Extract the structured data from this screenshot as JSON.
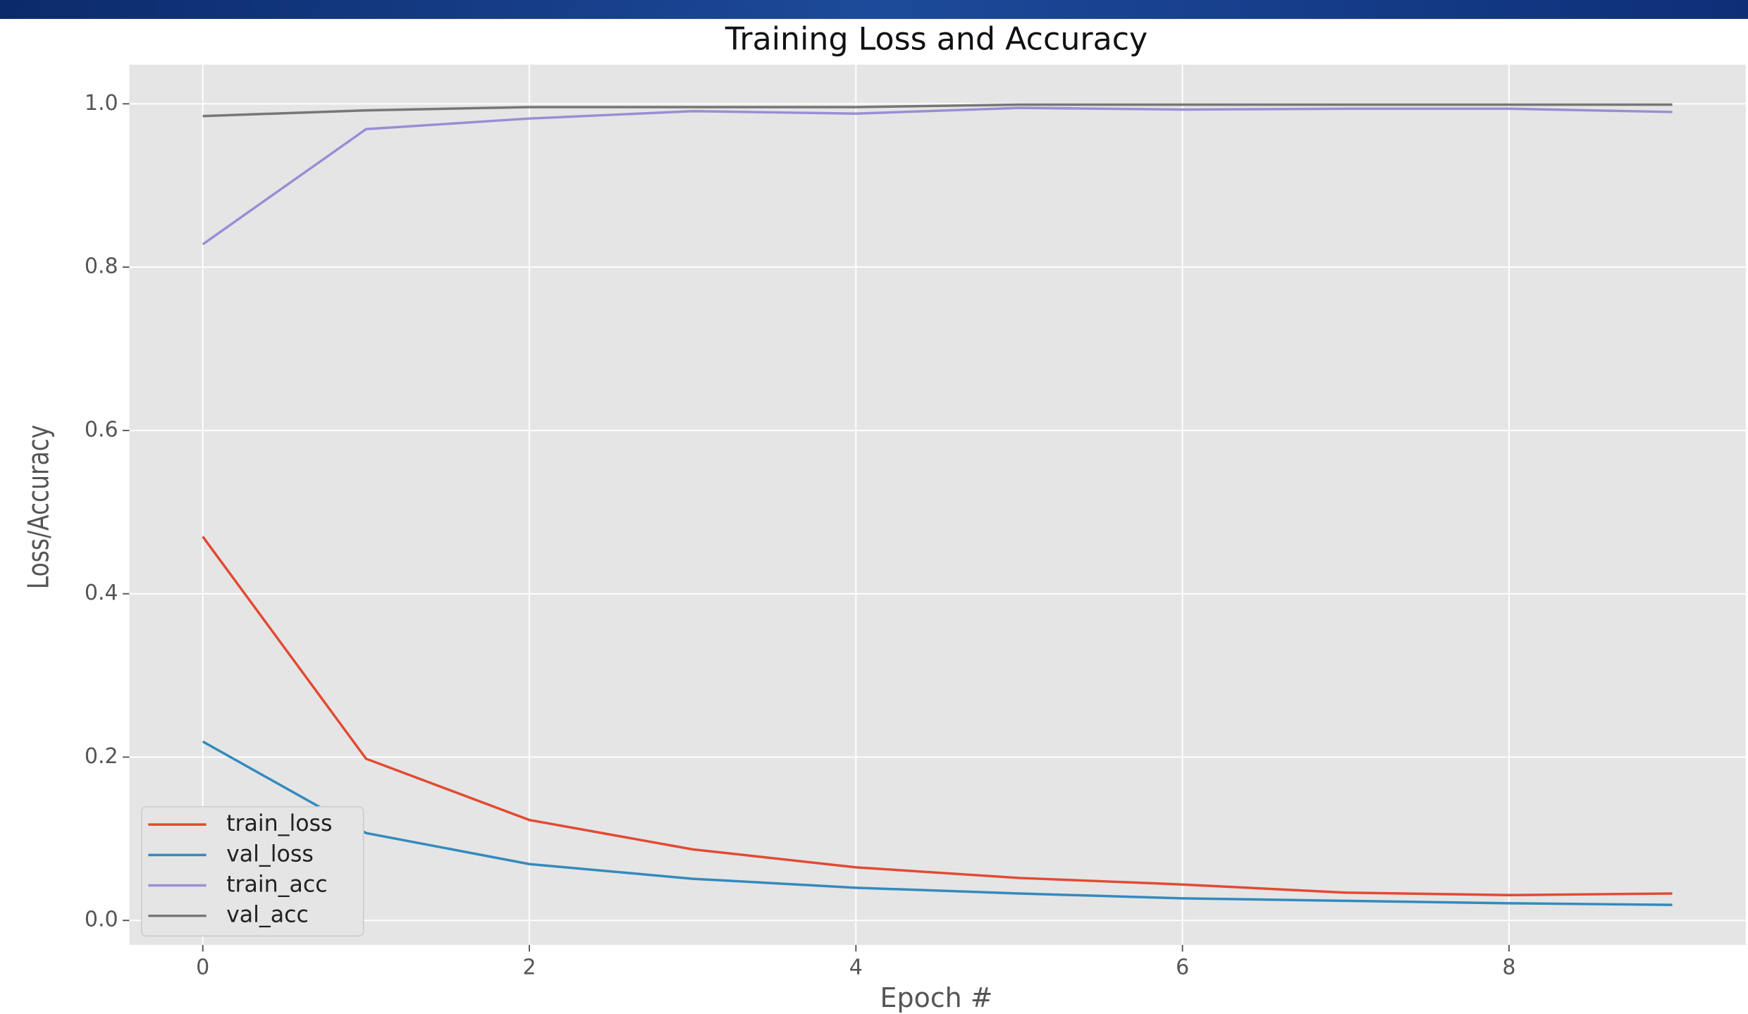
{
  "chart_data": {
    "type": "line",
    "title": "Training Loss and Accuracy",
    "x_label": "Epoch #",
    "y_label": "Loss/Accuracy",
    "x": [
      0,
      1,
      2,
      3,
      4,
      5,
      6,
      7,
      8,
      9
    ],
    "series": [
      {
        "name": "train_loss",
        "color": "#E24A33",
        "values": [
          0.47,
          0.198,
          0.123,
          0.087,
          0.065,
          0.052,
          0.044,
          0.034,
          0.031,
          0.033
        ]
      },
      {
        "name": "val_loss",
        "color": "#348ABD",
        "values": [
          0.219,
          0.107,
          0.069,
          0.051,
          0.04,
          0.033,
          0.027,
          0.024,
          0.021,
          0.019
        ]
      },
      {
        "name": "train_acc",
        "color": "#988ED5",
        "values": [
          0.828,
          0.969,
          0.982,
          0.991,
          0.988,
          0.995,
          0.993,
          0.994,
          0.994,
          0.99
        ]
      },
      {
        "name": "val_acc",
        "color": "#777777",
        "values": [
          0.985,
          0.992,
          0.996,
          0.996,
          0.996,
          0.999,
          0.999,
          0.999,
          0.999,
          0.999
        ]
      }
    ],
    "xlim": [
      -0.45,
      9.45
    ],
    "ylim": [
      -0.03,
      1.048
    ],
    "xticks": [
      0,
      2,
      4,
      6,
      8
    ],
    "yticks": [
      {
        "value": 0,
        "label": "0.0"
      },
      {
        "value": 0.2,
        "label": "0.2"
      },
      {
        "value": 0.4,
        "label": "0.4"
      },
      {
        "value": 0.6,
        "label": "0.6"
      },
      {
        "value": 0.8,
        "label": "0.8"
      },
      {
        "value": 1,
        "label": "1.0"
      }
    ],
    "grid": true,
    "legend": "lower left"
  }
}
